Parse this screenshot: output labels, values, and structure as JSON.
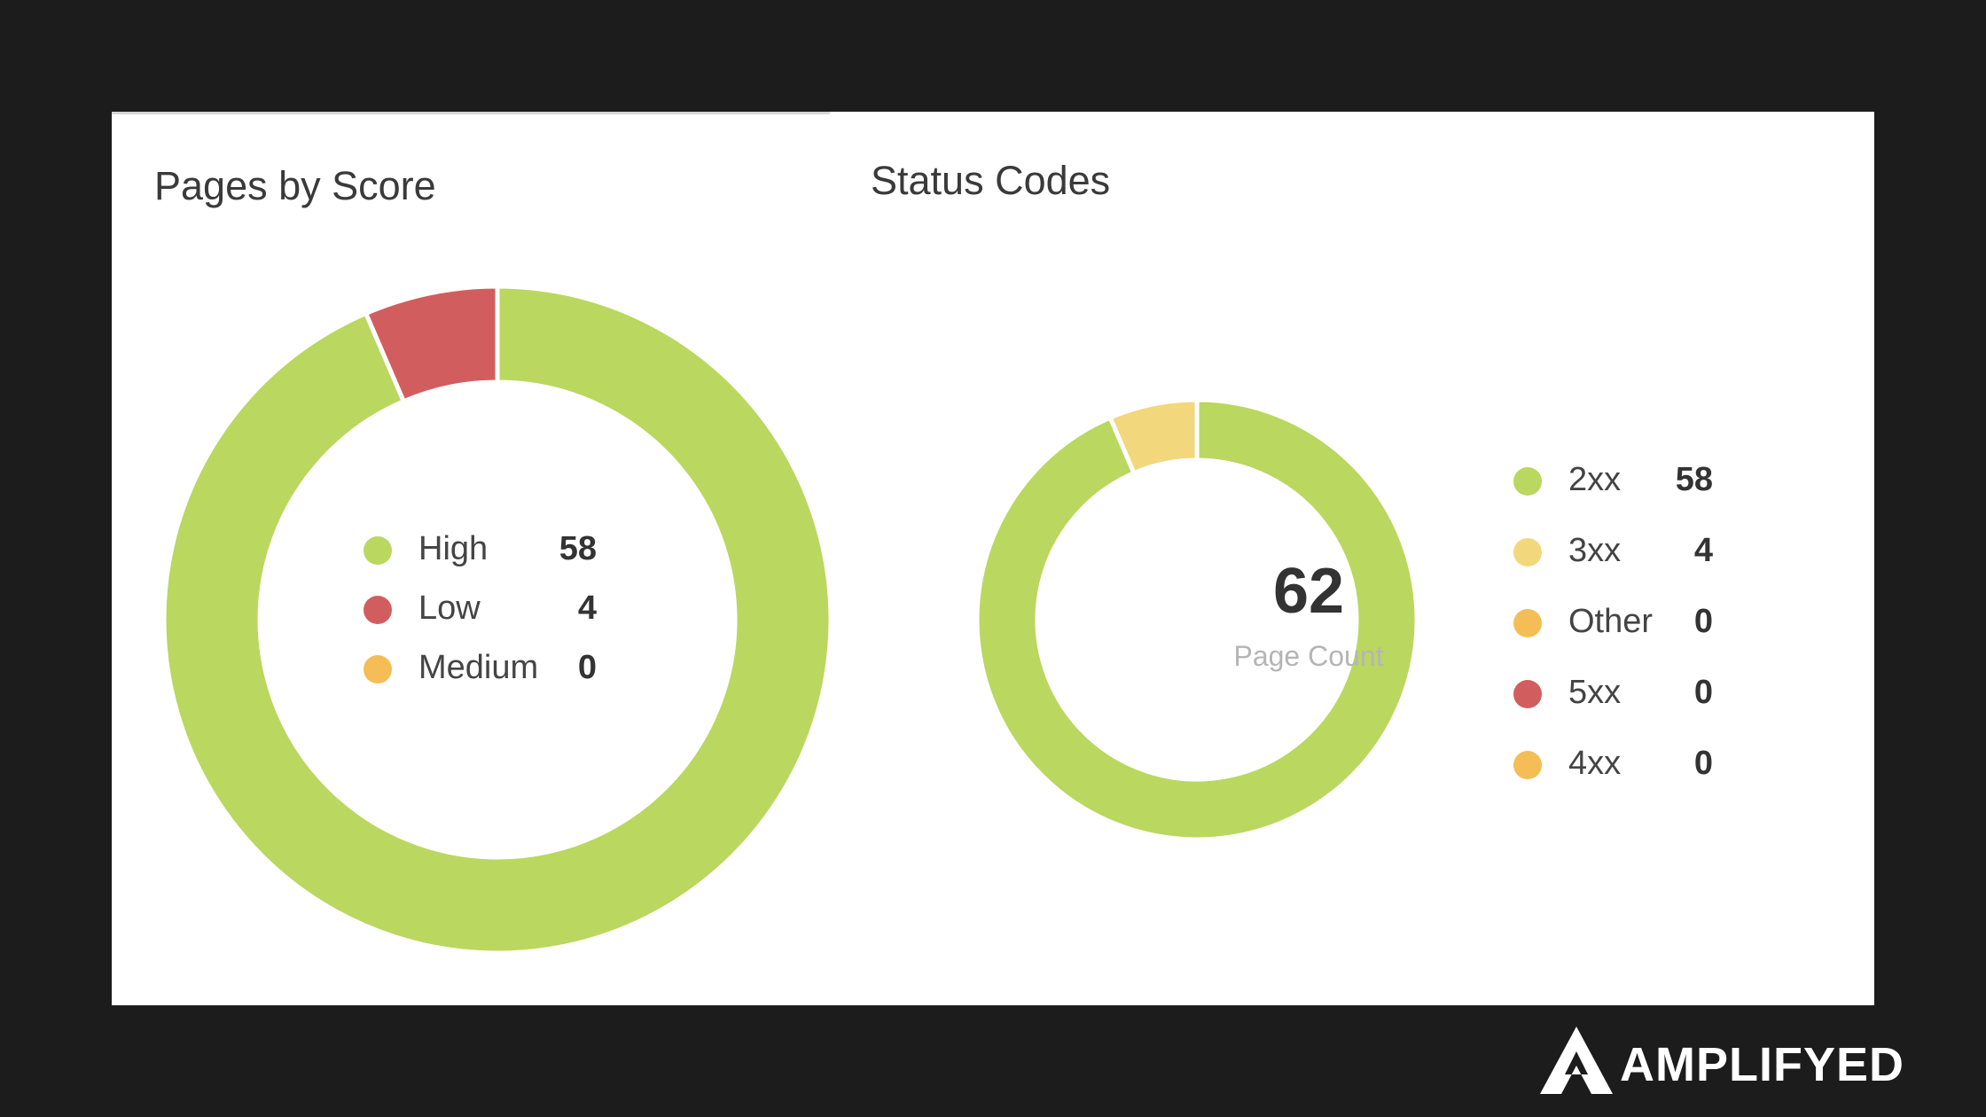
{
  "brand": {
    "name": "AMPLIFYED",
    "icon": "triangle-logo-icon"
  },
  "chart_data": [
    {
      "type": "pie",
      "variant": "donut",
      "title": "Pages by Score",
      "legend_position": "center",
      "slices": [
        {
          "label": "High",
          "value": 58,
          "color": "#bad75f"
        },
        {
          "label": "Low",
          "value": 4,
          "color": "#d25d5f"
        },
        {
          "label": "Medium",
          "value": 0,
          "color": "#f5bd55"
        }
      ]
    },
    {
      "type": "pie",
      "variant": "donut",
      "title": "Status Codes",
      "legend_position": "right",
      "center_value": "62",
      "center_label": "Page Count",
      "slices": [
        {
          "label": "2xx",
          "value": 58,
          "color": "#bad75f"
        },
        {
          "label": "3xx",
          "value": 4,
          "color": "#f2d77c"
        },
        {
          "label": "Other",
          "value": 0,
          "color": "#f5bd55"
        },
        {
          "label": "5xx",
          "value": 0,
          "color": "#d25d5f"
        },
        {
          "label": "4xx",
          "value": 0,
          "color": "#f5bd55"
        }
      ]
    }
  ]
}
